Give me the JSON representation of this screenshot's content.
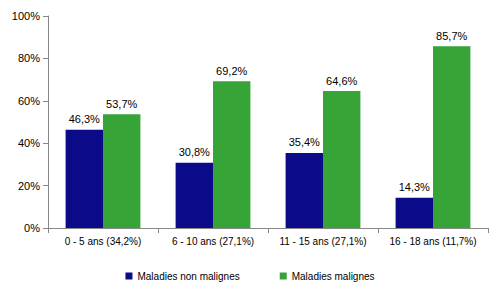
{
  "chart_data": {
    "type": "bar",
    "categories": [
      "0 - 5 ans (34,2%)",
      "6 - 10 ans (27,1%)",
      "11 - 15 ans (27,1%)",
      "16 - 18 ans (11,7%)"
    ],
    "series": [
      {
        "name": "Maladies non malignes",
        "color": "#0b0b8a",
        "values": [
          46.3,
          30.8,
          35.4,
          14.3
        ],
        "value_labels": [
          "46,3%",
          "30,8%",
          "35,4%",
          "14,3%"
        ]
      },
      {
        "name": "Maladies malignes",
        "color": "#36a436",
        "values": [
          53.7,
          69.2,
          64.6,
          85.7
        ],
        "value_labels": [
          "53,7%",
          "69,2%",
          "64,6%",
          "85,7%"
        ]
      }
    ],
    "ylim": [
      0,
      100
    ],
    "yticks": [
      {
        "value": 0,
        "label": "0%"
      },
      {
        "value": 20,
        "label": "20%"
      },
      {
        "value": 40,
        "label": "40%"
      },
      {
        "value": 60,
        "label": "60%"
      },
      {
        "value": 80,
        "label": "80%"
      },
      {
        "value": 100,
        "label": "100%"
      }
    ],
    "grid": false,
    "legend": "bottom",
    "data_labels": true
  }
}
